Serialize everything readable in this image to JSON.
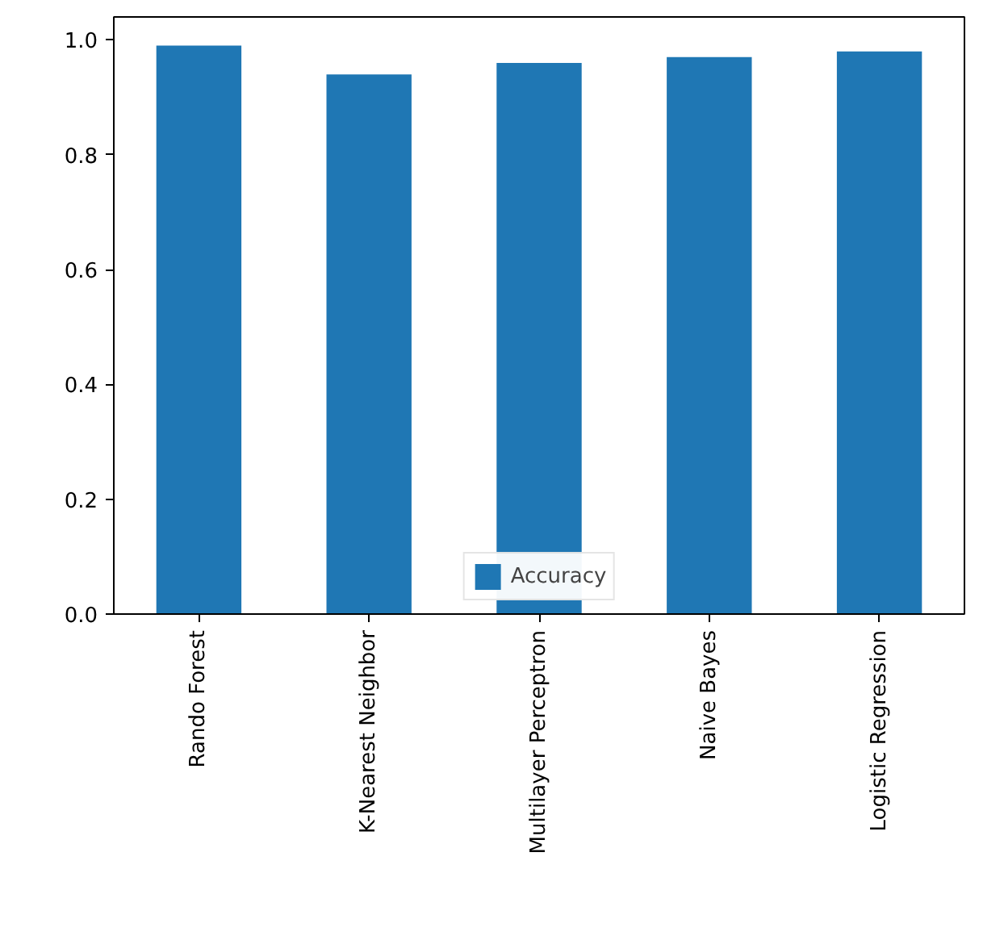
{
  "chart_data": {
    "type": "bar",
    "categories": [
      "Rando Forest",
      "K-Nearest Neighbor",
      "Multilayer Perceptron",
      "Naive Bayes",
      "Logistic Regression"
    ],
    "series": [
      {
        "name": "Accuracy",
        "color": "#1f77b4",
        "values": [
          0.99,
          0.94,
          0.96,
          0.97,
          0.98
        ]
      }
    ],
    "ylim": [
      0,
      1.04
    ],
    "yticks": [
      {
        "value": 0,
        "label": "0.0"
      },
      0.2,
      0.4,
      0.6,
      0.8,
      {
        "value": 1,
        "label": "1.0"
      }
    ],
    "legend": "bottom"
  }
}
